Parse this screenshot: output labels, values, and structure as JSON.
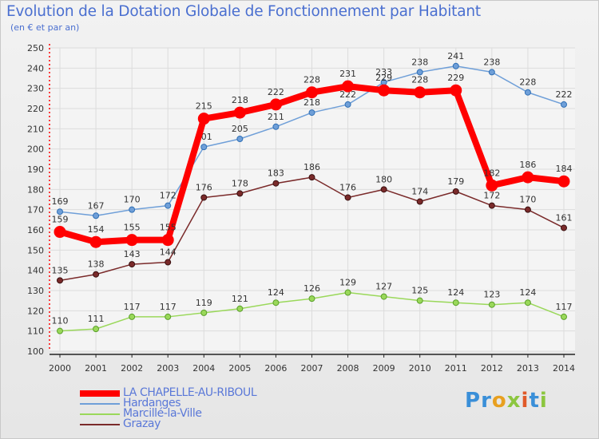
{
  "title": "Evolution de la Dotation Globale de Fonctionnement par Habitant",
  "subtitle": "(en € et par an)",
  "logo": {
    "text": "Proxiti",
    "letters": [
      {
        "ch": "P",
        "color": "#3a8fd8"
      },
      {
        "ch": "r",
        "color": "#3a8fd8"
      },
      {
        "ch": "o",
        "color": "#e8a020"
      },
      {
        "ch": "x",
        "color": "#8cc63f"
      },
      {
        "ch": "i",
        "color": "#e05a2a"
      },
      {
        "ch": "t",
        "color": "#3a8fd8"
      },
      {
        "ch": "i",
        "color": "#8cc63f"
      }
    ]
  },
  "chart_data": {
    "type": "line",
    "title": "Evolution de la Dotation Globale de Fonctionnement par Habitant",
    "subtitle": "(en € et par an)",
    "x": [
      "2000",
      "2001",
      "2002",
      "2003",
      "2004",
      "2005",
      "2006",
      "2007",
      "2008",
      "2009",
      "2010",
      "2011",
      "2012",
      "2013",
      "2014"
    ],
    "ylim": [
      100,
      250
    ],
    "yticks": [
      100,
      110,
      120,
      130,
      140,
      150,
      160,
      170,
      180,
      190,
      200,
      210,
      220,
      230,
      240,
      250
    ],
    "grid": true,
    "legend_position": "bottom-left",
    "series": [
      {
        "name": "LA CHAPELLE-AU-RIBOUL",
        "color": "#ff0000",
        "emphasis": true,
        "values": [
          159,
          154,
          155,
          155,
          215,
          218,
          222,
          228,
          231,
          229,
          228,
          229,
          182,
          186,
          184
        ]
      },
      {
        "name": "Hardanges",
        "color": "#6f9fd8",
        "emphasis": false,
        "values": [
          169,
          167,
          170,
          172,
          201,
          205,
          211,
          218,
          222,
          233,
          238,
          241,
          238,
          228,
          222
        ]
      },
      {
        "name": "Marcillé-la-Ville",
        "color": "#9ad85a",
        "emphasis": false,
        "values": [
          110,
          111,
          117,
          117,
          119,
          121,
          124,
          126,
          129,
          127,
          125,
          124,
          123,
          124,
          117
        ]
      },
      {
        "name": "Grazay",
        "color": "#7a2a2a",
        "emphasis": false,
        "values": [
          135,
          138,
          143,
          144,
          176,
          178,
          183,
          186,
          176,
          180,
          174,
          179,
          172,
          170,
          161
        ]
      }
    ]
  }
}
